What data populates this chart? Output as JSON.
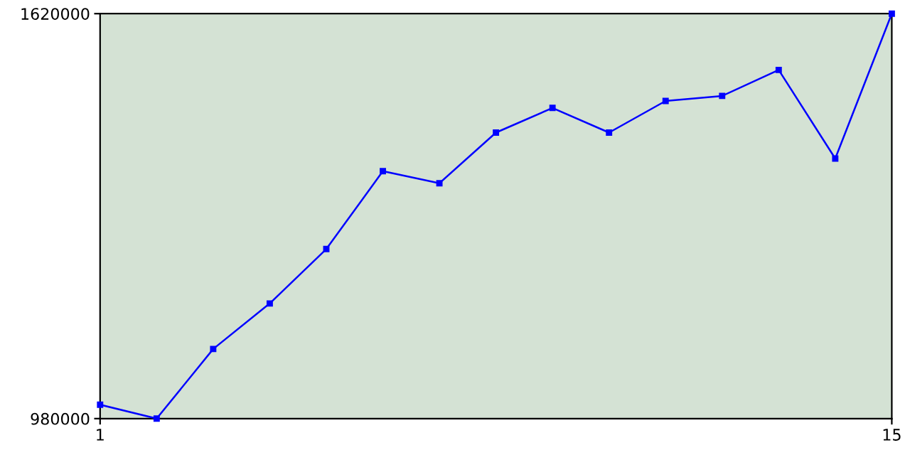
{
  "chart_data": {
    "type": "line",
    "x": [
      1,
      2,
      3,
      4,
      5,
      6,
      7,
      8,
      9,
      10,
      11,
      12,
      13,
      14,
      15
    ],
    "series": [
      {
        "color": "#0000ff",
        "values": [
          1002000,
          980000,
          1090000,
          1162000,
          1248000,
          1371000,
          1352000,
          1432000,
          1471000,
          1432000,
          1482000,
          1490000,
          1531000,
          1391000,
          1620000
        ]
      }
    ],
    "xlim": [
      1,
      15
    ],
    "xticks": [
      1,
      15
    ],
    "ylim": [
      980000,
      1620000
    ],
    "yticks": [
      980000,
      1620000
    ],
    "marker": "square"
  }
}
